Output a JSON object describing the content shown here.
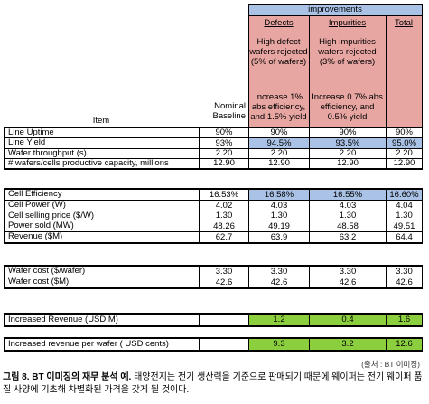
{
  "header": {
    "improvements": "improvements",
    "item": "Item",
    "nominal_baseline": "Nominal Baseline",
    "defects": "Defects",
    "impurities": "Impurities",
    "total": "Total",
    "defects_desc1": "High defect wafers rejected (5% of wafers)",
    "defects_desc2": "Increase 1% abs efficiency, and 1.5% yield",
    "impurities_desc1": "High impurities wafers rejected (3% of wafers)",
    "impurities_desc2": "Increase 0.7% abs efficiency, and 0.5% yield"
  },
  "rows": [
    {
      "label": "Line Uptime",
      "nominal": "90%",
      "defects": "90%",
      "impurities": "90%",
      "total": "90%"
    },
    {
      "label": "Line Yield",
      "nominal": "93%",
      "defects": "94.5%",
      "impurities": "93.5%",
      "total": "95.0%"
    },
    {
      "label": "Wafer throughput (s)",
      "nominal": "2.20",
      "defects": "2.20",
      "impurities": "2.20",
      "total": "2.20"
    },
    {
      "label": "# wafers/cells productive capacity, millions",
      "nominal": "12.90",
      "defects": "12.90",
      "impurities": "12.90",
      "total": "12.90"
    },
    {
      "label": "Cell Efficiency",
      "nominal": "16.53%",
      "defects": "16.58%",
      "impurities": "16.55%",
      "total": "16.60%"
    },
    {
      "label": "Cell Power (W)",
      "nominal": "4.02",
      "defects": "4.03",
      "impurities": "4.03",
      "total": "4.04"
    },
    {
      "label": "Cell selling price ($/W)",
      "nominal": "1.30",
      "defects": "1.30",
      "impurities": "1.30",
      "total": "1.30"
    },
    {
      "label": "Power sold (MW)",
      "nominal": "48.26",
      "defects": "49.19",
      "impurities": "48.58",
      "total": "49.51"
    },
    {
      "label": "Revenue ($M)",
      "nominal": "62.7",
      "defects": "63.9",
      "impurities": "63.2",
      "total": "64.4"
    },
    {
      "label": "Wafer cost ($/wafer)",
      "nominal": "3.30",
      "defects": "3.30",
      "impurities": "3.30",
      "total": "3.30"
    },
    {
      "label": "Wafer cost ($M)",
      "nominal": "42.6",
      "defects": "42.6",
      "impurities": "42.6",
      "total": "42.6"
    },
    {
      "label": "Increased Revenue (USD M)",
      "nominal": "",
      "defects": "1.2",
      "impurities": "0.4",
      "total": "1.6"
    },
    {
      "label": "Increased revenue per wafer ( USD cents)",
      "nominal": "",
      "defects": "9.3",
      "impurities": "3.2",
      "total": "12.6"
    }
  ],
  "source": "(출처 : BT 이미징)",
  "caption": {
    "figure_label": "그림 8. BT 이미징의 재무 분석 예.",
    "text": " 태양전지는 전기 생산력을 기준으로 판매되기 때문에 웨이퍼는 전기 웨이퍼 품질 사양에 기초해 차별화된 가격을 갖게 될 것이다."
  }
}
